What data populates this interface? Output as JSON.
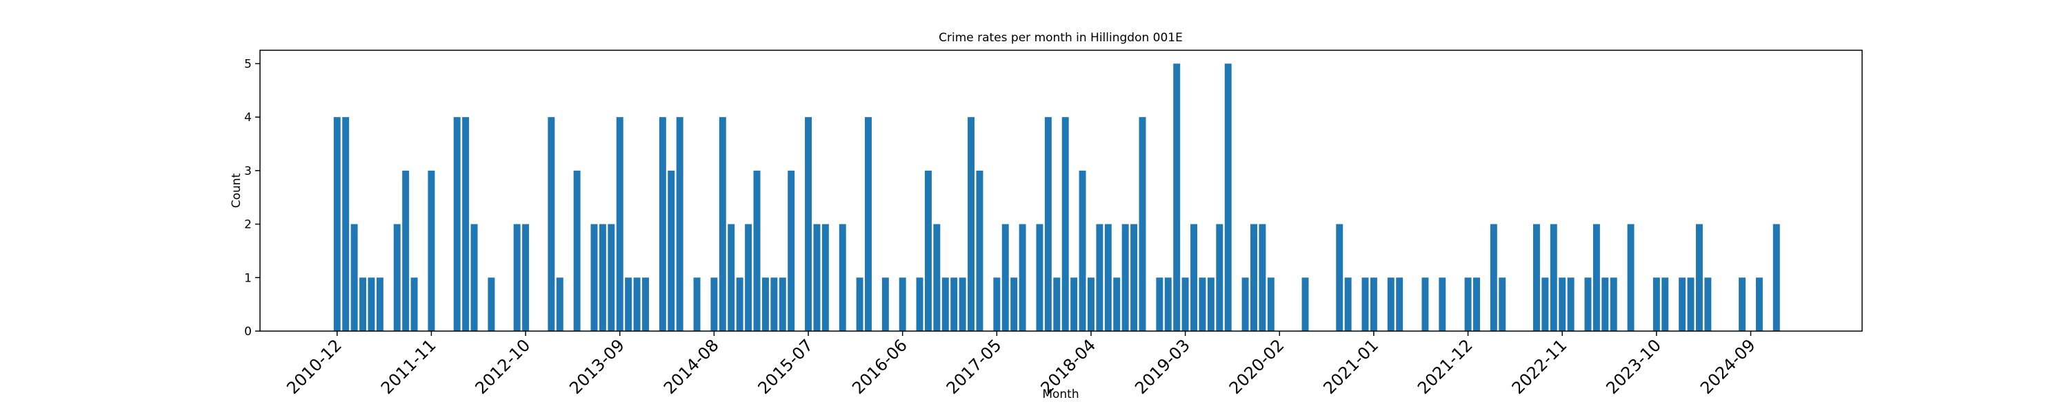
{
  "chart_data": {
    "type": "bar",
    "title": "Crime rates per month in Hillingdon 001E",
    "xlabel": "Month",
    "ylabel": "Count",
    "color": "#1f77b4",
    "x": [
      "2010-12",
      "2011-01",
      "2011-02",
      "2011-03",
      "2011-04",
      "2011-05",
      "2011-07",
      "2011-08",
      "2011-09",
      "2011-11",
      "2012-02",
      "2012-03",
      "2012-04",
      "2012-06",
      "2012-09",
      "2012-10",
      "2013-01",
      "2013-02",
      "2013-04",
      "2013-06",
      "2013-07",
      "2013-08",
      "2013-09",
      "2013-10",
      "2013-11",
      "2013-12",
      "2014-02",
      "2014-03",
      "2014-04",
      "2014-06",
      "2014-08",
      "2014-09",
      "2014-10",
      "2014-11",
      "2014-12",
      "2015-01",
      "2015-02",
      "2015-03",
      "2015-04",
      "2015-05",
      "2015-07",
      "2015-08",
      "2015-09",
      "2015-11",
      "2016-01",
      "2016-02",
      "2016-04",
      "2016-06",
      "2016-08",
      "2016-09",
      "2016-10",
      "2016-11",
      "2016-12",
      "2017-01",
      "2017-02",
      "2017-03",
      "2017-05",
      "2017-06",
      "2017-07",
      "2017-08",
      "2017-10",
      "2017-11",
      "2017-12",
      "2018-01",
      "2018-02",
      "2018-03",
      "2018-04",
      "2018-05",
      "2018-06",
      "2018-07",
      "2018-08",
      "2018-09",
      "2018-10",
      "2018-12",
      "2019-01",
      "2019-02",
      "2019-03",
      "2019-04",
      "2019-05",
      "2019-06",
      "2019-07",
      "2019-08",
      "2019-10",
      "2019-11",
      "2019-12",
      "2020-01",
      "2020-05",
      "2020-09",
      "2020-10",
      "2020-12",
      "2021-01",
      "2021-03",
      "2021-04",
      "2021-07",
      "2021-09",
      "2021-12",
      "2022-01",
      "2022-03",
      "2022-04",
      "2022-08",
      "2022-09",
      "2022-10",
      "2022-11",
      "2022-12",
      "2023-02",
      "2023-03",
      "2023-04",
      "2023-05",
      "2023-07",
      "2023-10",
      "2023-11",
      "2024-01",
      "2024-02",
      "2024-03",
      "2024-04",
      "2024-08",
      "2024-10",
      "2024-12"
    ],
    "values": [
      4,
      4,
      2,
      1,
      1,
      1,
      2,
      3,
      1,
      3,
      4,
      4,
      2,
      1,
      2,
      2,
      4,
      1,
      3,
      2,
      2,
      2,
      4,
      1,
      1,
      1,
      4,
      3,
      4,
      1,
      1,
      4,
      2,
      1,
      2,
      3,
      1,
      1,
      1,
      3,
      4,
      2,
      2,
      2,
      1,
      4,
      1,
      1,
      1,
      3,
      2,
      1,
      1,
      1,
      4,
      3,
      1,
      2,
      1,
      2,
      2,
      4,
      1,
      4,
      1,
      3,
      1,
      2,
      2,
      1,
      2,
      2,
      4,
      1,
      1,
      5,
      1,
      2,
      1,
      1,
      2,
      5,
      1,
      2,
      2,
      1,
      1,
      2,
      1,
      1,
      1,
      1,
      1,
      1,
      1,
      1,
      1,
      2,
      1,
      2,
      1,
      2,
      1,
      1,
      1,
      2,
      1,
      1,
      2,
      1,
      1,
      1,
      1,
      2,
      1,
      1,
      1,
      2
    ],
    "xlim": [
      "2010-03",
      "2025-10"
    ],
    "xticks": [
      "2010-12",
      "2011-11",
      "2012-10",
      "2013-09",
      "2014-08",
      "2015-07",
      "2016-06",
      "2017-05",
      "2018-04",
      "2019-03",
      "2020-02",
      "2021-01",
      "2021-12",
      "2022-11",
      "2023-10",
      "2024-09"
    ],
    "ylim": [
      0,
      5.25
    ],
    "yticks": [
      0,
      1,
      2,
      3,
      4,
      5
    ]
  }
}
